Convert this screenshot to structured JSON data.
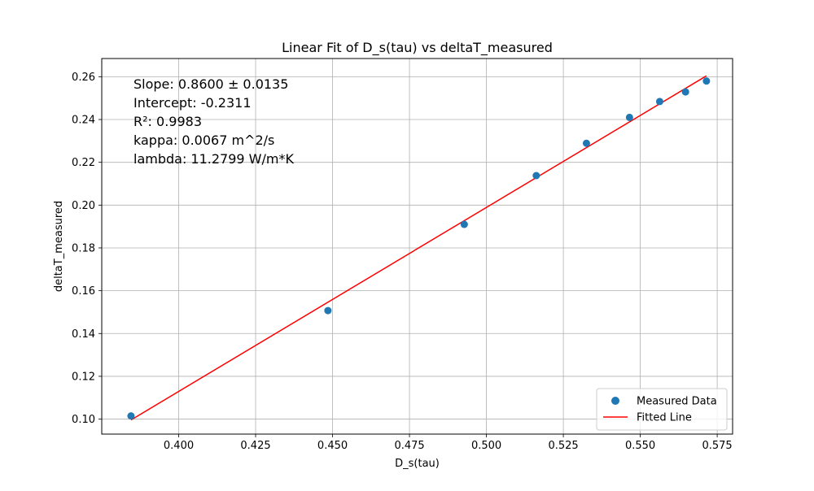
{
  "chart_data": {
    "type": "scatter",
    "title": "Linear Fit of D_s(tau) vs deltaT_measured",
    "xlabel": "D_s(tau)",
    "ylabel": "deltaT_measured",
    "xlim": [
      0.375,
      0.58
    ],
    "ylim": [
      0.093,
      0.2685
    ],
    "xticks": [
      0.4,
      0.425,
      0.45,
      0.475,
      0.5,
      0.525,
      0.55,
      0.575
    ],
    "xtick_labels": [
      "0.400",
      "0.425",
      "0.450",
      "0.475",
      "0.500",
      "0.525",
      "0.550",
      "0.575"
    ],
    "yticks": [
      0.1,
      0.12,
      0.14,
      0.16,
      0.18,
      0.2,
      0.22,
      0.24,
      0.26
    ],
    "ytick_labels": [
      "0.10",
      "0.12",
      "0.14",
      "0.16",
      "0.18",
      "0.20",
      "0.22",
      "0.24",
      "0.26"
    ],
    "grid": true,
    "legend_position": "bottom-right",
    "series": [
      {
        "name": "Measured Data",
        "kind": "scatter",
        "color": "#1f77b4",
        "points": [
          {
            "x": 0.3845,
            "y": 0.1015
          },
          {
            "x": 0.4485,
            "y": 0.1507
          },
          {
            "x": 0.4928,
            "y": 0.191
          },
          {
            "x": 0.5162,
            "y": 0.2138
          },
          {
            "x": 0.5325,
            "y": 0.2289
          },
          {
            "x": 0.5465,
            "y": 0.241
          },
          {
            "x": 0.5563,
            "y": 0.2484
          },
          {
            "x": 0.5647,
            "y": 0.2529
          },
          {
            "x": 0.5715,
            "y": 0.258
          }
        ]
      },
      {
        "name": "Fitted Line",
        "kind": "line",
        "color": "#ff0000",
        "points": [
          {
            "x": 0.3845,
            "y": 0.0996
          },
          {
            "x": 0.5715,
            "y": 0.2604
          }
        ]
      }
    ],
    "annotations": [
      "Slope: 0.8600 ± 0.0135",
      "Intercept: -0.2311",
      "R²: 0.9983",
      "kappa: 0.0067 m^2/s",
      "lambda: 11.2799 W/m*K"
    ]
  }
}
